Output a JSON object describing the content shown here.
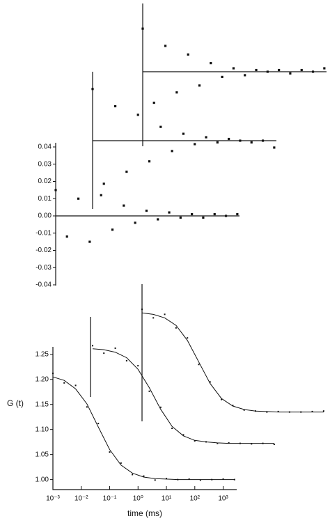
{
  "chart_data": [
    {
      "type": "scatter",
      "xscale": "log",
      "xlim": [
        0.001,
        3000
      ],
      "ylim": [
        -0.04,
        0.04
      ],
      "yticks": [
        -0.04,
        -0.03,
        -0.02,
        -0.01,
        {
          "value": 0,
          "label": "0.00"
        },
        0.01,
        0.02,
        0.03,
        0.04
      ],
      "color": "#111111",
      "x": [
        0.001,
        0.0025,
        0.0063,
        0.0158,
        0.0398,
        0.1,
        0.251,
        0.631,
        1.585,
        3.98,
        10,
        25.1,
        63.1,
        158,
        398,
        1000,
        2512
      ],
      "series": [
        {
          "values": [
            0.015,
            -0.012,
            0.01,
            -0.015,
            0.012,
            -0.008,
            0.006,
            -0.004,
            0.003,
            -0.002,
            0.002,
            -0.001,
            0.001,
            -0.001,
            0.001,
            0.0,
            0.001
          ]
        },
        {
          "values": [
            0.03,
            -0.025,
            0.02,
            -0.018,
            0.015,
            -0.012,
            0.008,
            -0.006,
            0.004,
            -0.002,
            0.002,
            -0.001,
            0.001,
            0.0,
            -0.001,
            0.0,
            -0.004
          ]
        },
        {
          "values": [
            0.025,
            -0.018,
            0.015,
            -0.012,
            0.01,
            -0.008,
            0.005,
            -0.003,
            0.002,
            -0.002,
            0.001,
            0.0,
            0.001,
            -0.001,
            0.001,
            0.0,
            0.002
          ]
        }
      ]
    },
    {
      "type": "scatter",
      "xscale": "log",
      "xlim": [
        0.001,
        3000
      ],
      "ylim": [
        0.98,
        1.265
      ],
      "xlabel": "time (ms)",
      "ylabel": "G (t)",
      "color": "#111111",
      "xticks": [
        {
          "value": 0.001,
          "label": "10⁻³"
        },
        {
          "value": 0.01,
          "label": "10⁻²"
        },
        {
          "value": 0.1,
          "label": "10⁻¹"
        },
        {
          "value": 1,
          "label": "10⁰"
        },
        {
          "value": 10,
          "label": "10¹"
        },
        {
          "value": 100,
          "label": "10²"
        },
        {
          "value": 1000,
          "label": "10³"
        }
      ],
      "yticks": [
        {
          "value": 1,
          "label": "1.00"
        },
        1.05,
        {
          "value": 1.1,
          "label": "1.10"
        },
        1.15,
        {
          "value": 1.2,
          "label": "1.20"
        },
        1.25
      ],
      "x": [
        0.001,
        0.0025,
        0.0063,
        0.0158,
        0.0398,
        0.1,
        0.251,
        0.631,
        1.585,
        3.98,
        10,
        25.1,
        63.1,
        158,
        398,
        1000,
        2512
      ],
      "series": [
        {
          "values": [
            1.212,
            1.193,
            1.188,
            1.145,
            1.112,
            1.055,
            1.033,
            1.01,
            1.007,
            0.999,
            1.002,
            1.0,
            1.001,
            0.999,
            1.0,
            1.001,
            1.0
          ],
          "fit": [
            1.205,
            1.198,
            1.181,
            1.151,
            1.105,
            1.06,
            1.029,
            1.013,
            1.005,
            1.002,
            1.001,
            1.0,
            1.0,
            1.0,
            1.0,
            1.0,
            1.0
          ]
        },
        {
          "values": [
            1.195,
            1.18,
            1.19,
            1.165,
            1.155,
            1.104,
            1.072,
            1.03,
            1.017,
            1.005,
            1.003,
            1.0,
            1.001,
            1.0,
            0.999,
            1.0,
            0.998
          ],
          "fit": [
            1.189,
            1.187,
            1.182,
            1.171,
            1.148,
            1.111,
            1.068,
            1.034,
            1.015,
            1.006,
            1.003,
            1.001,
            1.0,
            1.0,
            1.0,
            1.0,
            1.0
          ]
        },
        {
          "values": [
            1.205,
            1.188,
            1.195,
            1.168,
            1.148,
            1.095,
            1.06,
            1.025,
            1.013,
            1.004,
            1.002,
            1.0,
            1.001,
            1.0,
            1.0,
            1.001,
            1.002
          ],
          "fit": [
            1.198,
            1.195,
            1.188,
            1.173,
            1.143,
            1.1,
            1.057,
            1.027,
            1.012,
            1.005,
            1.002,
            1.001,
            1.0,
            1.0,
            1.0,
            1.0,
            1.0
          ]
        }
      ]
    }
  ]
}
